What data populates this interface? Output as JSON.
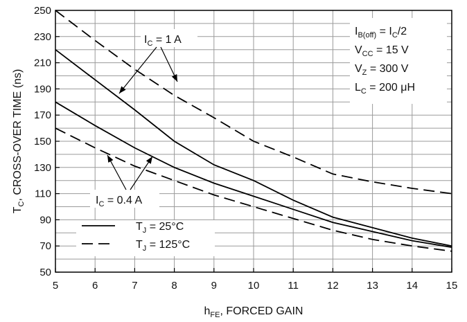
{
  "chart_data": {
    "type": "line",
    "xlabel": {
      "main": "h",
      "sub": "FE",
      "rest": ", FORCED GAIN"
    },
    "ylabel": {
      "main": "T",
      "sub": "C",
      "rest": ", CROSS-OVER TIME (ns)"
    },
    "xlim": [
      5,
      15
    ],
    "ylim": [
      50,
      250
    ],
    "x_ticks": [
      5,
      6,
      7,
      8,
      9,
      10,
      11,
      12,
      13,
      14,
      15
    ],
    "y_ticks": [
      50,
      70,
      90,
      110,
      130,
      150,
      170,
      190,
      210,
      230,
      250
    ],
    "grid": true,
    "series": [
      {
        "group": "IC = 1 A",
        "temp": "TJ = 25°C",
        "style": "solid",
        "x": [
          5,
          6,
          7,
          8,
          9,
          10,
          11,
          12,
          13,
          14,
          15
        ],
        "y": [
          220,
          197,
          174,
          150,
          132,
          120,
          105,
          92,
          84,
          76,
          70
        ]
      },
      {
        "group": "IC = 1 A",
        "temp": "TJ = 125°C",
        "style": "dashed",
        "x": [
          5,
          6,
          7,
          8,
          9,
          10,
          11,
          12,
          13,
          14,
          15
        ],
        "y": [
          250,
          227,
          205,
          185,
          168,
          150,
          138,
          125,
          119,
          114,
          110
        ]
      },
      {
        "group": "IC = 0.4 A",
        "temp": "TJ = 25°C",
        "style": "solid",
        "x": [
          5,
          6,
          7,
          8,
          9,
          10,
          11,
          12,
          13,
          14,
          15
        ],
        "y": [
          180,
          162,
          145,
          130,
          118,
          108,
          98,
          88,
          81,
          74,
          69
        ]
      },
      {
        "group": "IC = 0.4 A",
        "temp": "TJ = 125°C",
        "style": "dashed",
        "x": [
          5,
          6,
          7,
          8,
          9,
          10,
          11,
          12,
          13,
          14,
          15
        ],
        "y": [
          160,
          145,
          131,
          120,
          109,
          100,
          91,
          82,
          75,
          70,
          66
        ]
      }
    ],
    "annotations": {
      "ic_1a": {
        "main": "I",
        "sub": "C",
        "rest": " = 1 A"
      },
      "ic_04a": {
        "main": "I",
        "sub": "C",
        "rest": " = 0.4 A"
      },
      "conditions": [
        {
          "main": "I",
          "sub": "B(off)",
          "rest": " = I",
          "sub2": "C",
          "rest2": "/2"
        },
        {
          "main": "V",
          "sub": "CC",
          "rest": " = 15 V"
        },
        {
          "main": "V",
          "sub": "Z",
          "rest": " = 300 V"
        },
        {
          "main": "L",
          "sub": "C",
          "rest": " = 200 μH"
        }
      ]
    },
    "legend": {
      "position": "bottom-left",
      "items": [
        {
          "style": "solid",
          "main": "T",
          "sub": "J",
          "rest": " = 25°C"
        },
        {
          "style": "dashed",
          "main": "T",
          "sub": "J",
          "rest": " = 125°C"
        }
      ]
    }
  }
}
